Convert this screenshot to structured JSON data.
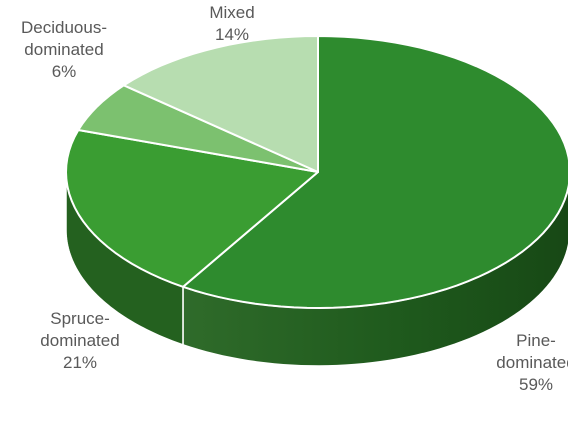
{
  "chart_data": {
    "type": "pie",
    "style": "3d",
    "title": "",
    "start_angle": "top, clockwise",
    "legend": "none",
    "slices": [
      {
        "label_lines": [
          "Pine-",
          "dominated"
        ],
        "value": 59,
        "value_label": "59%",
        "color": "#2e8b2e"
      },
      {
        "label_lines": [
          "Spruce-",
          "dominated"
        ],
        "value": 21,
        "value_label": "21%",
        "color": "#3a9d32"
      },
      {
        "label_lines": [
          "Deciduous-",
          "dominated"
        ],
        "value": 6,
        "value_label": "6%",
        "color": "#7cc16f"
      },
      {
        "label_lines": [
          "Mixed"
        ],
        "value": 14,
        "value_label": "14%",
        "color": "#b7ddb0"
      }
    ]
  }
}
